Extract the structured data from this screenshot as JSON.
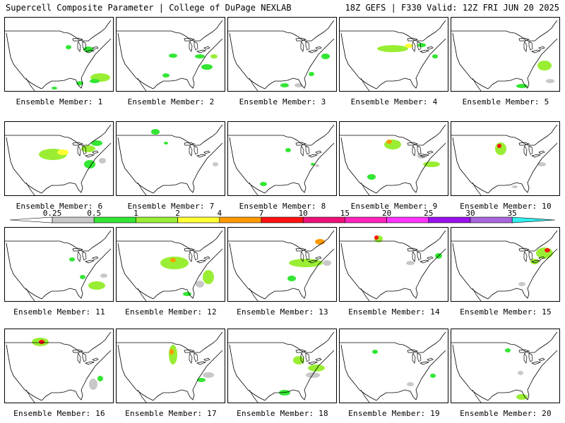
{
  "header": {
    "left_title": "Supercell Composite Parameter | College of DuPage NEXLAB",
    "right_title": "18Z GEFS | F330 Valid: 12Z FRI JUN 20 2025"
  },
  "colorbar": {
    "ticks": [
      "0.25",
      "0.5",
      "1",
      "2",
      "4",
      "7",
      "10",
      "15",
      "20",
      "25",
      "30",
      "35"
    ],
    "colors": [
      "#c8c8c8",
      "#33e633",
      "#99ee33",
      "#ffff33",
      "#ff9900",
      "#ff1111",
      "#ee1177",
      "#ff22bb",
      "#ff33ff",
      "#9911ee",
      "#aa66dd",
      "#33eeee"
    ],
    "low_color": "#ffffff"
  },
  "map_colors": {
    "gray": "#c8c8c8",
    "green": "#33e633",
    "lime": "#99ee33",
    "yellow": "#ffff33",
    "orange": "#ff9900",
    "red": "#ff1111"
  },
  "panels": [
    {
      "label": "Ensemble Member: 1"
    },
    {
      "label": "Ensemble Member: 2"
    },
    {
      "label": "Ensemble Member: 3"
    },
    {
      "label": "Ensemble Member: 4"
    },
    {
      "label": "Ensemble Member: 5"
    },
    {
      "label": "Ensemble Member: 6"
    },
    {
      "label": "Ensemble Member: 7"
    },
    {
      "label": "Ensemble Member: 8"
    },
    {
      "label": "Ensemble Member: 9"
    },
    {
      "label": "Ensemble Member: 10"
    },
    {
      "label": "Ensemble Member: 11"
    },
    {
      "label": "Ensemble Member: 12"
    },
    {
      "label": "Ensemble Member: 13"
    },
    {
      "label": "Ensemble Member: 14"
    },
    {
      "label": "Ensemble Member: 15"
    },
    {
      "label": "Ensemble Member: 16"
    },
    {
      "label": "Ensemble Member: 17"
    },
    {
      "label": "Ensemble Member: 18"
    },
    {
      "label": "Ensemble Member: 19"
    },
    {
      "label": "Ensemble Member: 20"
    }
  ]
}
